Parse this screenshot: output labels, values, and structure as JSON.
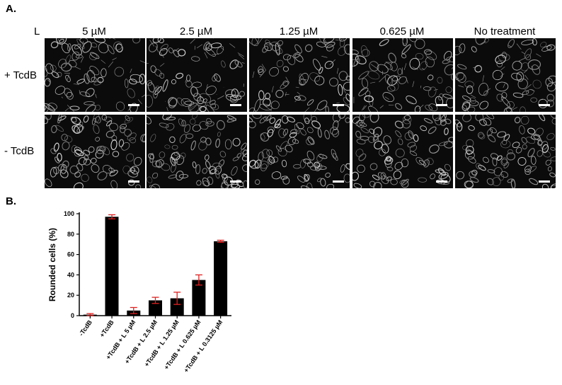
{
  "panel_a": {
    "label": "A.",
    "ligand_label": "L",
    "columns": [
      "5 µM",
      "2.5 µM",
      "1.25 µM",
      "0.625 µM",
      "No treatment"
    ],
    "rows": [
      "+ TcdB",
      "- TcdB"
    ]
  },
  "panel_b": {
    "label": "B."
  },
  "chart_data": {
    "type": "bar",
    "categories": [
      "-TcdB",
      "+TcdB",
      "+TcdB + L 5 µM",
      "+TcdB + L 2.5 µM",
      "+TcdB + L 1.25 µM",
      "+TcdB + L 0.625 µM",
      "+TcdB + L 0.3125 µM"
    ],
    "values": [
      1,
      97,
      5,
      15,
      17,
      35,
      73
    ],
    "errors": [
      1,
      2,
      3,
      3,
      6,
      5,
      1
    ],
    "ylabel": "Rounded cells (%)",
    "ylim": [
      0,
      100
    ],
    "yticks": [
      0,
      20,
      40,
      60,
      80,
      100
    ],
    "bar_color": "#000000",
    "error_color": "#e02020",
    "grid": false
  }
}
